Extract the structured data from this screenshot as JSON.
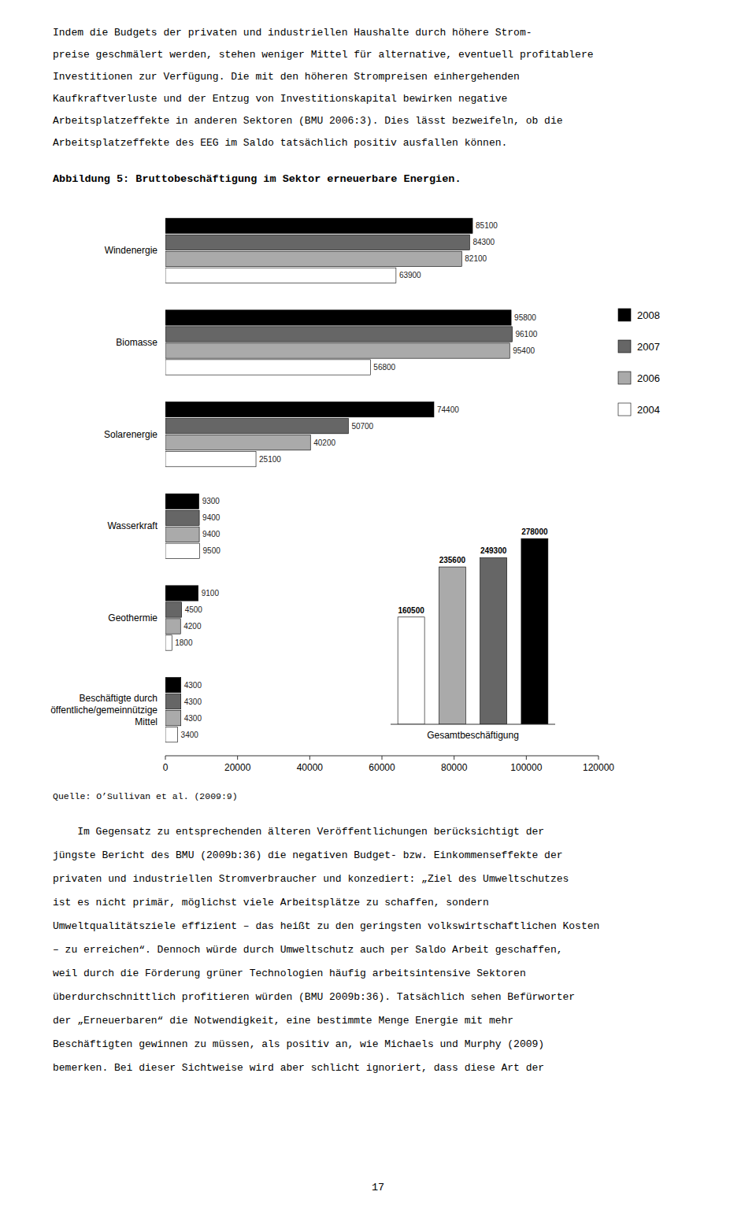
{
  "text_before": [
    "Indem die Budgets der privaten und industriellen Haushalte durch höhere Strom-",
    "preise geschmälert werden, stehen weniger Mittel für alternative, eventuell profitablere",
    "Investitionen zur Verfügung. Die mit den höheren Strompreisen einhergehenden",
    "Kaufkraftverluste und der Entzug von Investitionskapital bewirken negative",
    "Arbeitsplatzeffekte in anderen Sektoren (BMU 2006:3). Dies lässt bezweifeln, ob die",
    "Arbeitsplatzeffekte des EEG im Saldo tatsächlich positiv ausfallen können."
  ],
  "text_after": [
    "    Im Gegensatz zu entsprechenden älteren Veröffentlichungen berücksichtigt der",
    "jüngste Bericht des BMU (2009b:36) die negativen Budget- bzw. Einkommenseffekte der",
    "privaten und industriellen Stromverbraucher und konzediert: „Ziel des Umweltschutzes",
    "ist es nicht primär, möglichst viele Arbeitsplätze zu schaffen, sondern",
    "Umweltqualitätsziele effizient – das heißt zu den geringsten volkswirtschaftlichen Kosten",
    "– zu erreichen“. Dennoch würde durch Umweltschutz auch per Saldo Arbeit geschaffen,",
    "weil durch die Förderung grüner Technologien häufig arbeitsintensive Sektoren",
    "überdurchschnittlich profitieren würden (BMU 2009b:36). Tatsächlich sehen Befürworter",
    "der „Erneuerbaren“ die Notwendigkeit, eine bestimmte Menge Energie mit mehr",
    "Beschäftigten gewinnen zu müssen, als positiv an, wie Michaels und Murphy (2009)",
    "bemerken. Bei dieser Sichtweise wird aber schlicht ignoriert, dass diese Art der"
  ],
  "page_number": "17",
  "chart_data": [
    {
      "type": "bar",
      "orientation": "horizontal",
      "title": "Abbildung 5: Bruttobeschäftigung im Sektor erneuerbare Energien.",
      "source": "Quelle: O’Sullivan et al. (2009:9)",
      "categories": [
        "Windenergie",
        "Biomasse",
        "Solarenergie",
        "Wasserkraft",
        "Geothermie",
        "Beschäftigte durch\nöffentliche/gemeinnützige\nMittel"
      ],
      "series": [
        {
          "name": "2008",
          "color": "#000000",
          "values": [
            85100,
            95800,
            74400,
            9300,
            9100,
            4300
          ]
        },
        {
          "name": "2007",
          "color": "#666666",
          "values": [
            84300,
            96100,
            50700,
            9400,
            4500,
            4300
          ]
        },
        {
          "name": "2006",
          "color": "#aaaaaa",
          "values": [
            82100,
            95400,
            40200,
            9400,
            4200,
            4300
          ]
        },
        {
          "name": "2004",
          "color": "#ffffff",
          "values": [
            63900,
            56800,
            25100,
            9500,
            1800,
            3400
          ]
        }
      ],
      "xlim": [
        0,
        120000
      ],
      "xticks": [
        0,
        20000,
        40000,
        60000,
        80000,
        100000,
        120000
      ],
      "data_labels": true,
      "grid": false,
      "legend": "right"
    },
    {
      "type": "bar",
      "xlabel": "Gesamtbeschäftigung",
      "categories": [
        null,
        null,
        null,
        null
      ],
      "values": [
        160500,
        235600,
        249300,
        278000
      ],
      "colors": [
        "#ffffff",
        "#aaaaaa",
        "#666666",
        "#000000"
      ],
      "ylim": [
        0,
        330000
      ],
      "data_labels": true,
      "tick_labels": false,
      "grid": false
    }
  ]
}
